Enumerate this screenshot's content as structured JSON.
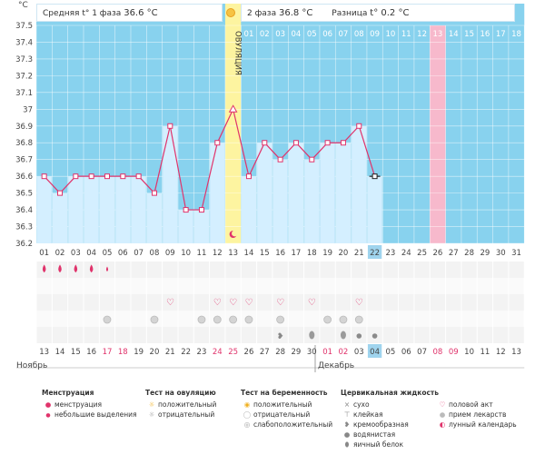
{
  "header": {
    "phase1_label": "Средняя t° 1 фаза",
    "phase1_value": "36.6 °C",
    "phase2_label": "2 фаза",
    "phase2_value": "36.8 °C",
    "diff_label": "Разница",
    "diff_value": "t° 0.2 °C",
    "ovulation_label": "ОВУЛЯЦИЯ"
  },
  "months": {
    "left": "Ноябрь",
    "right": "Декабрь"
  },
  "colors": {
    "bg_blue": "#88d2ee",
    "bar_light": "#d4efff",
    "ovulation_yellow": "#fdf4a0",
    "pink_day": "#f7b9cc",
    "line": "#e0336b",
    "weekend_red": "#e0336b"
  },
  "chart_data": {
    "type": "line",
    "ylabel": "°C",
    "ylim": [
      36.2,
      37.5
    ],
    "yticks": [
      "37.5",
      "37.4",
      "37.3",
      "37.2",
      "37.1",
      "37",
      "36.9",
      "36.8",
      "36.7",
      "36.6",
      "36.5",
      "36.4",
      "36.3",
      "36.2"
    ],
    "cycle_days": [
      "01",
      "02",
      "03",
      "04",
      "05",
      "06",
      "07",
      "08",
      "09",
      "10",
      "11",
      "12",
      "13",
      "14",
      "15",
      "16",
      "17",
      "18",
      "19",
      "20",
      "21",
      "22",
      "23",
      "24",
      "25",
      "26",
      "27",
      "28",
      "29",
      "30",
      "31"
    ],
    "phase2_days": [
      "01",
      "02",
      "03",
      "04",
      "05",
      "06",
      "07",
      "08",
      "09",
      "10",
      "11",
      "12",
      "13",
      "14",
      "15",
      "16",
      "17",
      "18"
    ],
    "dates": [
      "13",
      "14",
      "15",
      "16",
      "17",
      "18",
      "19",
      "20",
      "21",
      "22",
      "23",
      "24",
      "25",
      "26",
      "27",
      "28",
      "29",
      "30",
      "01",
      "02",
      "03",
      "04",
      "05",
      "06",
      "07",
      "08",
      "09",
      "10",
      "11",
      "12",
      "13"
    ],
    "weekend_indices": [
      4,
      5,
      11,
      12,
      18,
      19,
      25,
      26
    ],
    "today_index": 21,
    "ovulation_index": 12,
    "pink_index": 25,
    "temperatures": [
      36.6,
      36.5,
      36.6,
      36.6,
      36.6,
      36.6,
      36.6,
      36.5,
      36.9,
      36.4,
      36.4,
      36.8,
      37.0,
      36.6,
      36.8,
      36.7,
      36.8,
      36.7,
      36.8,
      36.8,
      36.9,
      36.6
    ]
  },
  "icon_rows": {
    "menstruation": [
      "drop",
      "drop",
      "drop",
      "drop",
      "drop-small",
      "",
      "",
      "",
      "",
      "",
      "",
      "",
      "",
      "",
      "",
      "",
      "",
      "",
      "",
      "",
      "",
      "",
      "",
      "",
      "",
      "",
      "",
      "",
      "",
      "",
      ""
    ],
    "sex": [
      "",
      "",
      "",
      "",
      "",
      "",
      "",
      "",
      "heart",
      "",
      "",
      "heart",
      "heart",
      "heart",
      "",
      "heart",
      "",
      "heart",
      "",
      "",
      "heart",
      "",
      "",
      "",
      "",
      "",
      "",
      "",
      "",
      "",
      ""
    ],
    "pills": [
      "",
      "",
      "",
      "",
      "circle",
      "",
      "",
      "circle",
      "",
      "",
      "circle",
      "circle",
      "circle",
      "circle",
      "",
      "circle",
      "",
      "",
      "circle",
      "circle",
      "circle",
      "",
      "",
      "",
      "",
      "",
      "",
      "",
      "",
      "",
      ""
    ],
    "fluid": [
      "",
      "",
      "",
      "",
      "",
      "",
      "",
      "",
      "",
      "",
      "",
      "",
      "",
      "",
      "",
      "creamy",
      "",
      "creamy-egg",
      "",
      "egg",
      "drop",
      "drop",
      "",
      "",
      "",
      "",
      "",
      "",
      "",
      "",
      ""
    ],
    "moon": [
      "",
      "",
      "",
      "",
      "",
      "",
      "",
      "",
      "",
      "",
      "",
      "",
      "moon",
      "",
      "",
      "",
      "",
      "",
      "",
      "",
      "",
      "",
      "",
      "",
      "",
      "",
      "",
      "",
      "",
      "",
      ""
    ]
  },
  "legend": {
    "menstruation": {
      "title": "Менструация",
      "items": [
        "менструация",
        "небольшие выделения"
      ]
    },
    "ovulation_test": {
      "title": "Тест на овуляцию",
      "items": [
        "положительный",
        "отрицательный"
      ]
    },
    "pregnancy_test": {
      "title": "Тест на беременность",
      "items": [
        "положительный",
        "отрицательный",
        "слабоположительный"
      ]
    },
    "cervical_fluid": {
      "title": "Цервикальная жидкость",
      "items": [
        "сухо",
        "клейкая",
        "кремообразная",
        "водянистая",
        "яичный белок"
      ]
    },
    "other": {
      "title": "",
      "items": [
        "половой акт",
        "прием лекарств",
        "лунный календарь"
      ]
    }
  }
}
